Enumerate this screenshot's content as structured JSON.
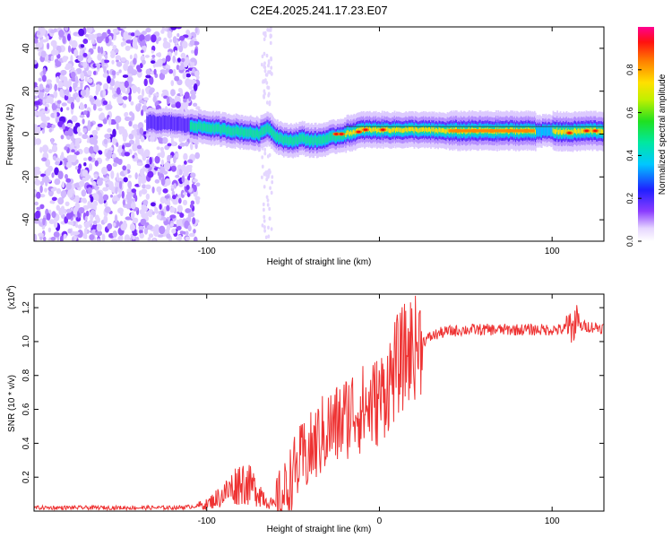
{
  "title": "C2E4.2025.241.17.23.E07",
  "chart_data": [
    {
      "type": "heatmap",
      "xlabel": "Height of straight line (km)",
      "ylabel": "Frequency (Hz)",
      "xlim": [
        -200,
        130
      ],
      "ylim": [
        -50,
        50
      ],
      "x_ticks": [
        -100,
        0,
        100
      ],
      "x_tick_labels": [
        "-100",
        "",
        "100"
      ],
      "y_ticks": [
        -40,
        -20,
        0,
        20,
        40
      ],
      "y_tick_labels": [
        "-40",
        "-20",
        "0",
        "20",
        "40"
      ],
      "colorbar": {
        "label": "Normalized spectral amplitude",
        "range": [
          0,
          1
        ],
        "ticks": [
          0,
          0.2,
          0.4,
          0.6,
          0.8
        ],
        "tick_labels": [
          "0.0",
          "0.2",
          "0.4",
          "0.6",
          "0.8"
        ]
      },
      "ridge_center": {
        "x": [
          -200,
          -160,
          -120,
          -110,
          -100,
          -90,
          -80,
          -70,
          -65,
          -60,
          -55,
          -50,
          -45,
          -40,
          -35,
          -30,
          -25,
          -20,
          -15,
          -10,
          -5,
          0,
          10,
          20,
          40,
          60,
          80,
          100,
          110,
          120,
          130
        ],
        "y": [
          6,
          6,
          5,
          4,
          3,
          2,
          1,
          0,
          3,
          -1,
          -3,
          -3,
          -2,
          -3,
          -3,
          -2,
          -1,
          0,
          1,
          2,
          2,
          2,
          2,
          2,
          1.5,
          1.5,
          1.5,
          1.5,
          1,
          1.5,
          1.5
        ]
      },
      "noise_region_x": [
        -200,
        -105
      ]
    },
    {
      "type": "line",
      "xlabel": "Height of straight line (km)",
      "ylabel": "SNR (10 * v/v)",
      "y_multiplier_label": "(x10",
      "y_multiplier_exp": "4",
      "y_multiplier_close": ")",
      "xlim": [
        -200,
        130
      ],
      "ylim": [
        0,
        1.28
      ],
      "x_ticks": [
        -100,
        0,
        100
      ],
      "x_tick_labels": [
        "-100",
        "0",
        "100"
      ],
      "y_ticks": [
        0.2,
        0.4,
        0.6,
        0.8,
        1.0,
        1.2
      ],
      "y_tick_labels": [
        "0.2",
        "0.4",
        "0.6",
        "0.8",
        "1.0",
        "1.2"
      ],
      "series": [
        {
          "name": "SNR",
          "color": "#ee3333",
          "x": [
            -200,
            -180,
            -160,
            -140,
            -120,
            -110,
            -100,
            -95,
            -90,
            -85,
            -80,
            -75,
            -70,
            -65,
            -60,
            -55,
            -50,
            -45,
            -40,
            -35,
            -30,
            -25,
            -20,
            -15,
            -10,
            -5,
            0,
            5,
            10,
            15,
            20,
            25,
            30,
            35,
            40,
            50,
            60,
            70,
            80,
            90,
            100,
            105,
            110,
            112,
            115,
            120,
            130
          ],
          "values": [
            0.02,
            0.02,
            0.02,
            0.02,
            0.02,
            0.025,
            0.04,
            0.07,
            0.1,
            0.14,
            0.18,
            0.15,
            0.12,
            0.06,
            0.03,
            0.1,
            0.22,
            0.3,
            0.35,
            0.42,
            0.48,
            0.5,
            0.55,
            0.6,
            0.6,
            0.62,
            0.66,
            0.75,
            0.85,
            0.92,
            0.98,
            1.0,
            1.03,
            1.05,
            1.06,
            1.07,
            1.07,
            1.07,
            1.07,
            1.07,
            1.07,
            1.07,
            1.08,
            1.1,
            1.09,
            1.09,
            1.08
          ]
        }
      ]
    }
  ]
}
